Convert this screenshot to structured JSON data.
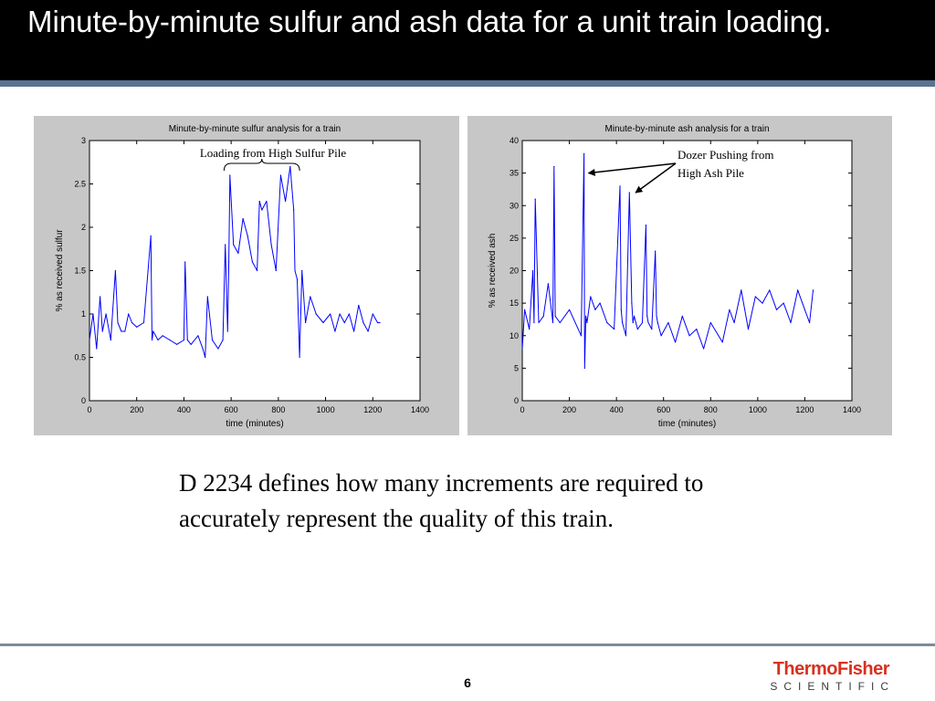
{
  "slide": {
    "title": "Minute-by-minute sulfur and ash data for a unit train loading.",
    "body": "D 2234 defines how many increments are required to accurately represent the quality of this train.",
    "page_number": "6",
    "logo": {
      "main": "ThermoFisher",
      "sub": "SCIENTIFIC"
    }
  },
  "colors": {
    "title_bar": "#000000",
    "accent_rule": "#5a7391",
    "series": "#0000ff",
    "panel_bg": "#c7c7c7",
    "logo_red": "#d7311f"
  },
  "chart_data": [
    {
      "type": "line",
      "title": "Minute-by-minute sulfur analysis for a train",
      "xlabel": "time (minutes)",
      "ylabel": "% as received sulfur",
      "xlim": [
        0,
        1400
      ],
      "ylim": [
        0,
        3
      ],
      "xticks": [
        0,
        200,
        400,
        600,
        800,
        1000,
        1200,
        1400
      ],
      "yticks": [
        0,
        0.5,
        1,
        1.5,
        2,
        2.5,
        3
      ],
      "grid": false,
      "annotation": {
        "text": "Loading from High Sulfur Pile",
        "range": [
          570,
          890
        ]
      },
      "series": [
        {
          "color": "#0000ff",
          "x": [
            0,
            15,
            30,
            45,
            55,
            70,
            90,
            110,
            120,
            135,
            150,
            165,
            180,
            200,
            230,
            260,
            265,
            270,
            290,
            310,
            340,
            370,
            400,
            405,
            415,
            430,
            460,
            480,
            490,
            500,
            520,
            545,
            565,
            575,
            585,
            590,
            595,
            610,
            630,
            650,
            670,
            690,
            710,
            720,
            730,
            750,
            770,
            790,
            810,
            830,
            850,
            865,
            870,
            880,
            890,
            900,
            915,
            935,
            960,
            990,
            1020,
            1040,
            1060,
            1080,
            1100,
            1120,
            1140,
            1160,
            1180,
            1200,
            1220,
            1230
          ],
          "values": [
            0.7,
            1.0,
            0.6,
            1.2,
            0.8,
            1.0,
            0.7,
            1.5,
            0.9,
            0.8,
            0.8,
            1.0,
            0.9,
            0.85,
            0.9,
            1.9,
            0.7,
            0.8,
            0.7,
            0.75,
            0.7,
            0.65,
            0.7,
            1.6,
            0.7,
            0.65,
            0.75,
            0.6,
            0.5,
            1.2,
            0.7,
            0.6,
            0.7,
            1.8,
            0.8,
            1.6,
            2.6,
            1.8,
            1.7,
            2.1,
            1.9,
            1.6,
            1.5,
            2.3,
            2.2,
            2.3,
            1.8,
            1.5,
            2.6,
            2.3,
            2.7,
            2.2,
            1.5,
            1.4,
            0.5,
            1.5,
            0.9,
            1.2,
            1.0,
            0.9,
            1.0,
            0.8,
            1.0,
            0.9,
            1.0,
            0.8,
            1.1,
            0.9,
            0.8,
            1.0,
            0.9,
            0.9
          ]
        }
      ]
    },
    {
      "type": "line",
      "title": "Minute-by-minute ash analysis for a train",
      "xlabel": "time (minutes)",
      "ylabel": "% as received ash",
      "xlim": [
        0,
        1400
      ],
      "ylim": [
        0,
        40
      ],
      "xticks": [
        0,
        200,
        400,
        600,
        800,
        1000,
        1200,
        1400
      ],
      "yticks": [
        0,
        5,
        10,
        15,
        20,
        25,
        30,
        35,
        40
      ],
      "grid": false,
      "annotation": {
        "text": [
          "Dozer Pushing from",
          "High Ash Pile"
        ],
        "points": [
          [
            270,
            35
          ],
          [
            470,
            32
          ]
        ]
      },
      "series": [
        {
          "color": "#0000ff",
          "x": [
            0,
            10,
            30,
            45,
            50,
            55,
            70,
            90,
            110,
            130,
            135,
            140,
            160,
            200,
            250,
            262,
            265,
            270,
            275,
            290,
            310,
            330,
            360,
            390,
            415,
            420,
            425,
            440,
            455,
            465,
            470,
            475,
            490,
            510,
            525,
            530,
            535,
            550,
            565,
            570,
            575,
            590,
            620,
            650,
            680,
            710,
            740,
            770,
            800,
            850,
            880,
            900,
            930,
            960,
            990,
            1020,
            1050,
            1080,
            1110,
            1140,
            1170,
            1200,
            1220,
            1235
          ],
          "values": [
            8,
            14,
            11,
            20,
            12,
            31,
            12,
            13,
            18,
            12,
            36,
            13,
            12,
            14,
            10,
            38,
            5,
            13,
            12,
            16,
            14,
            15,
            12,
            11,
            33,
            14,
            12,
            10,
            32,
            15,
            12,
            13,
            11,
            12,
            27,
            13,
            12,
            11,
            23,
            13,
            12,
            10,
            12,
            9,
            13,
            10,
            11,
            8,
            12,
            9,
            14,
            12,
            17,
            11,
            16,
            15,
            17,
            14,
            15,
            12,
            17,
            14,
            12,
            17
          ]
        }
      ]
    }
  ]
}
